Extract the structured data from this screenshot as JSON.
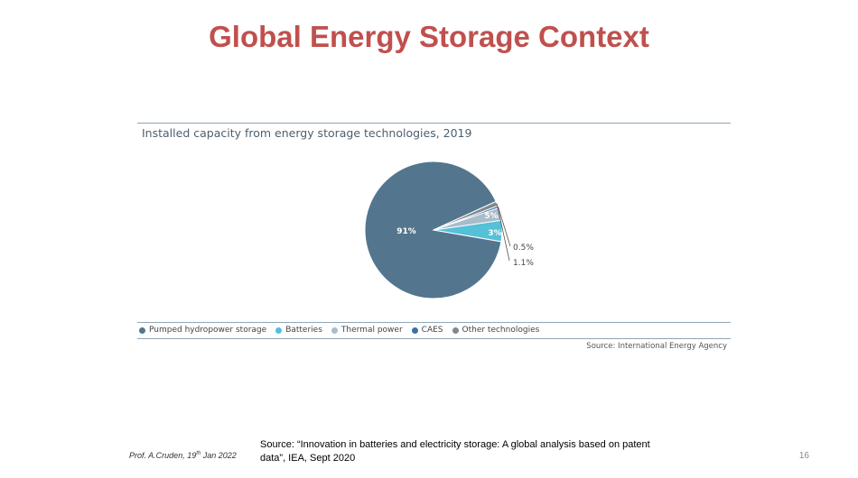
{
  "slide": {
    "title": "Global Energy Storage Context",
    "author_name": "Prof. A.Cruden, 19",
    "author_sup": "th",
    "author_date": " Jan 2022",
    "source_line1": "Source: “Innovation in batteries and electricity storage: A global analysis based on patent",
    "source_line2": "data”, IEA, Sept 2020",
    "page_number": "16"
  },
  "chart_data": {
    "type": "pie",
    "title": "Installed capacity from energy storage technologies, 2019",
    "source": "Source: International Energy Agency",
    "legend_position": "bottom",
    "slices": [
      {
        "name": "Pumped hydropower storage",
        "value": 91,
        "label": "91%",
        "color": "#53768e"
      },
      {
        "name": "Batteries",
        "value": 5,
        "label": "5%",
        "color": "#55c0d8"
      },
      {
        "name": "Thermal power",
        "value": 3,
        "label": "3%",
        "color": "#a9bccb"
      },
      {
        "name": "CAES",
        "value": 0.5,
        "label": "0.5%",
        "color": "#3e6fa8"
      },
      {
        "name": "Other technologies",
        "value": 1.1,
        "label": "1.1%",
        "color": "#808890"
      }
    ]
  }
}
